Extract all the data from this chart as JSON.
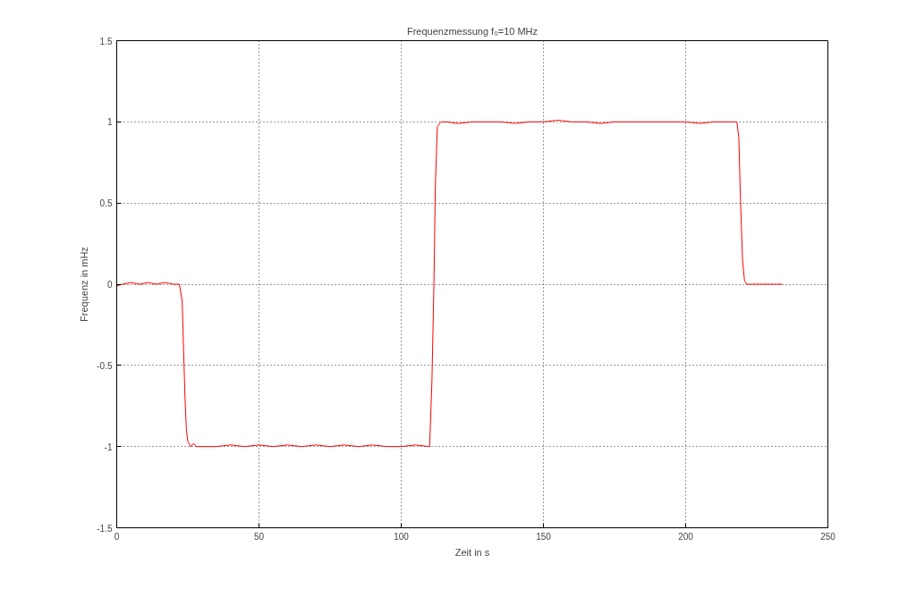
{
  "chart_data": {
    "type": "line",
    "title": "Frequenzmessung f₀=10 MHz",
    "xlabel": "Zeit in s",
    "ylabel": "Frequenz in mHz",
    "xlim": [
      0,
      250
    ],
    "ylim": [
      -1.5,
      1.5
    ],
    "xticks": [
      0,
      50,
      100,
      150,
      200,
      250
    ],
    "yticks": [
      -1.5,
      -1,
      -0.5,
      0,
      0.5,
      1,
      1.5
    ],
    "grid": true,
    "series": [
      {
        "color": "#ff0000",
        "line_style": "solid",
        "x": [
          0,
          2,
          5,
          8,
          11,
          14,
          17,
          20,
          22,
          23,
          23.5,
          24,
          24.5,
          25,
          26,
          27,
          28,
          30,
          35,
          40,
          45,
          50,
          55,
          60,
          65,
          70,
          75,
          80,
          85,
          90,
          95,
          100,
          105,
          110,
          110.8,
          111.5,
          112,
          112.7,
          114,
          116,
          120,
          125,
          130,
          135,
          140,
          145,
          150,
          155,
          160,
          165,
          170,
          175,
          180,
          185,
          190,
          195,
          200,
          205,
          210,
          215,
          218,
          218.7,
          219.3,
          220,
          220.7,
          221.5,
          223,
          226,
          229,
          232,
          234
        ],
        "values": [
          -0.01,
          0.0,
          0.01,
          0.0,
          0.01,
          0.0,
          0.01,
          0.0,
          0.0,
          -0.1,
          -0.4,
          -0.7,
          -0.9,
          -0.97,
          -1.0,
          -0.98,
          -1.0,
          -1.0,
          -1.0,
          -0.99,
          -1.0,
          -0.99,
          -1.0,
          -0.99,
          -1.0,
          -0.99,
          -1.0,
          -0.99,
          -1.0,
          -0.99,
          -1.0,
          -1.0,
          -0.99,
          -1.0,
          -0.6,
          0.0,
          0.6,
          0.97,
          1.0,
          1.0,
          0.99,
          1.0,
          1.0,
          1.0,
          0.99,
          1.0,
          1.0,
          1.01,
          1.0,
          1.0,
          0.99,
          1.0,
          1.0,
          1.0,
          1.0,
          1.0,
          1.0,
          0.99,
          1.0,
          1.0,
          1.0,
          0.9,
          0.5,
          0.15,
          0.02,
          0.0,
          0.0,
          0.0,
          0.0,
          0.0,
          0.0
        ]
      }
    ]
  }
}
